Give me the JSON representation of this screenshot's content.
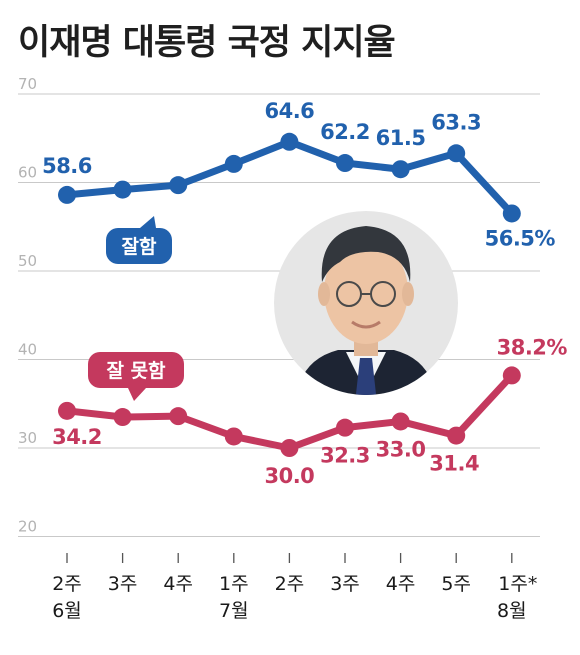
{
  "title": "이재명 대통령 국정 지지율",
  "colors": {
    "good": "#2161ad",
    "bad": "#c4395e",
    "grid": "#c9c9c9",
    "photo_bg": "#e6e6e6"
  },
  "portrait": {
    "icon": "person-portrait"
  },
  "chart_data": {
    "type": "line",
    "title": "이재명 대통령 국정 지지율",
    "categories": [
      "2주 6월",
      "3주",
      "4주",
      "1주 7월",
      "2주",
      "3주",
      "4주",
      "5주",
      "1주* 8월"
    ],
    "x_tick_lines": [
      [
        "2주",
        "6월"
      ],
      [
        "3주"
      ],
      [
        "4주"
      ],
      [
        "1주",
        "7월"
      ],
      [
        "2주"
      ],
      [
        "3주"
      ],
      [
        "4주"
      ],
      [
        "5주"
      ],
      [
        "1주*",
        "8월"
      ]
    ],
    "y_ticks": [
      "70",
      "60",
      "50",
      "40",
      "30",
      "20"
    ],
    "ylim": [
      20,
      70
    ],
    "grid": true,
    "series": [
      {
        "name": "잘함",
        "color": "#2161ad",
        "values": [
          58.6,
          59.2,
          59.7,
          62.1,
          64.6,
          62.2,
          61.5,
          63.3,
          56.5
        ],
        "labels": [
          "58.6",
          "",
          "",
          "",
          "64.6",
          "62.2",
          "61.5",
          "63.3",
          "56.5%"
        ]
      },
      {
        "name": "잘 못함",
        "color": "#c4395e",
        "values": [
          34.2,
          33.5,
          33.6,
          31.3,
          30.0,
          32.3,
          33.0,
          31.4,
          38.2
        ],
        "labels": [
          "34.2",
          "",
          "",
          "",
          "30.0",
          "32.3",
          "33.0",
          "31.4",
          "38.2%"
        ]
      }
    ]
  }
}
